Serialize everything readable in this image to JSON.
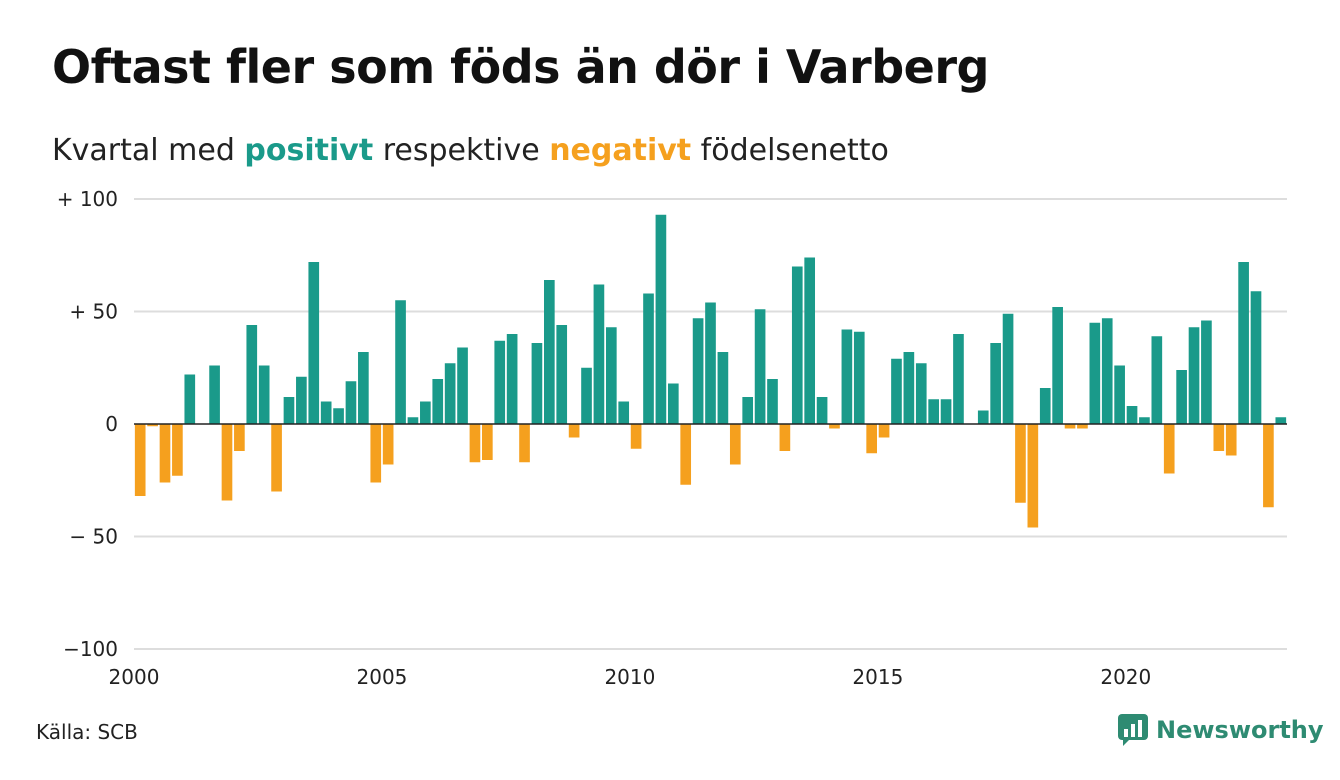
{
  "title": "Oftast fler som föds än dör i Varberg",
  "subtitle": {
    "prefix": "Kvartal med ",
    "positive_word": "positivt",
    "middle": " respektive ",
    "negative_word": "negativt",
    "suffix": " födelsenetto"
  },
  "source": "Källa: SCB",
  "brand": "Newsworthy",
  "colors": {
    "positive": "#1a9a8a",
    "negative": "#f5a01e",
    "grid": "#dddddd",
    "zero_line": "#222222",
    "brand": "#2e8b72"
  },
  "chart_data": {
    "type": "bar",
    "x_start": "2000 Q1",
    "period": "quarter",
    "ylim": [
      -100,
      100
    ],
    "y_ticks": [
      {
        "value": 100,
        "label": "+ 100"
      },
      {
        "value": 50,
        "label": "+  50"
      },
      {
        "value": 0,
        "label": "0"
      },
      {
        "value": -50,
        "label": "− 50"
      },
      {
        "value": -100,
        "label": "−100"
      }
    ],
    "x_ticks": [
      {
        "year": 2000,
        "label": "2000"
      },
      {
        "year": 2005,
        "label": "2005"
      },
      {
        "year": 2010,
        "label": "2010"
      },
      {
        "year": 2015,
        "label": "2015"
      },
      {
        "year": 2020,
        "label": "2020"
      }
    ],
    "grid": true,
    "values": [
      -32,
      -1,
      -26,
      -23,
      22,
      0,
      26,
      -34,
      -12,
      44,
      26,
      -30,
      12,
      21,
      72,
      10,
      7,
      19,
      32,
      -26,
      -18,
      55,
      3,
      10,
      20,
      27,
      34,
      -17,
      -16,
      37,
      40,
      -17,
      36,
      64,
      44,
      -6,
      25,
      62,
      43,
      10,
      -11,
      58,
      93,
      18,
      -27,
      47,
      54,
      32,
      -18,
      12,
      51,
      20,
      -12,
      70,
      74,
      12,
      -2,
      42,
      41,
      -13,
      -6,
      29,
      32,
      27,
      11,
      11,
      40,
      0,
      6,
      36,
      49,
      -35,
      -46,
      16,
      52,
      -2,
      -2,
      45,
      47,
      26,
      8,
      3,
      39,
      -22,
      24,
      43,
      46,
      -12,
      -14,
      72,
      59,
      -37,
      3
    ]
  }
}
